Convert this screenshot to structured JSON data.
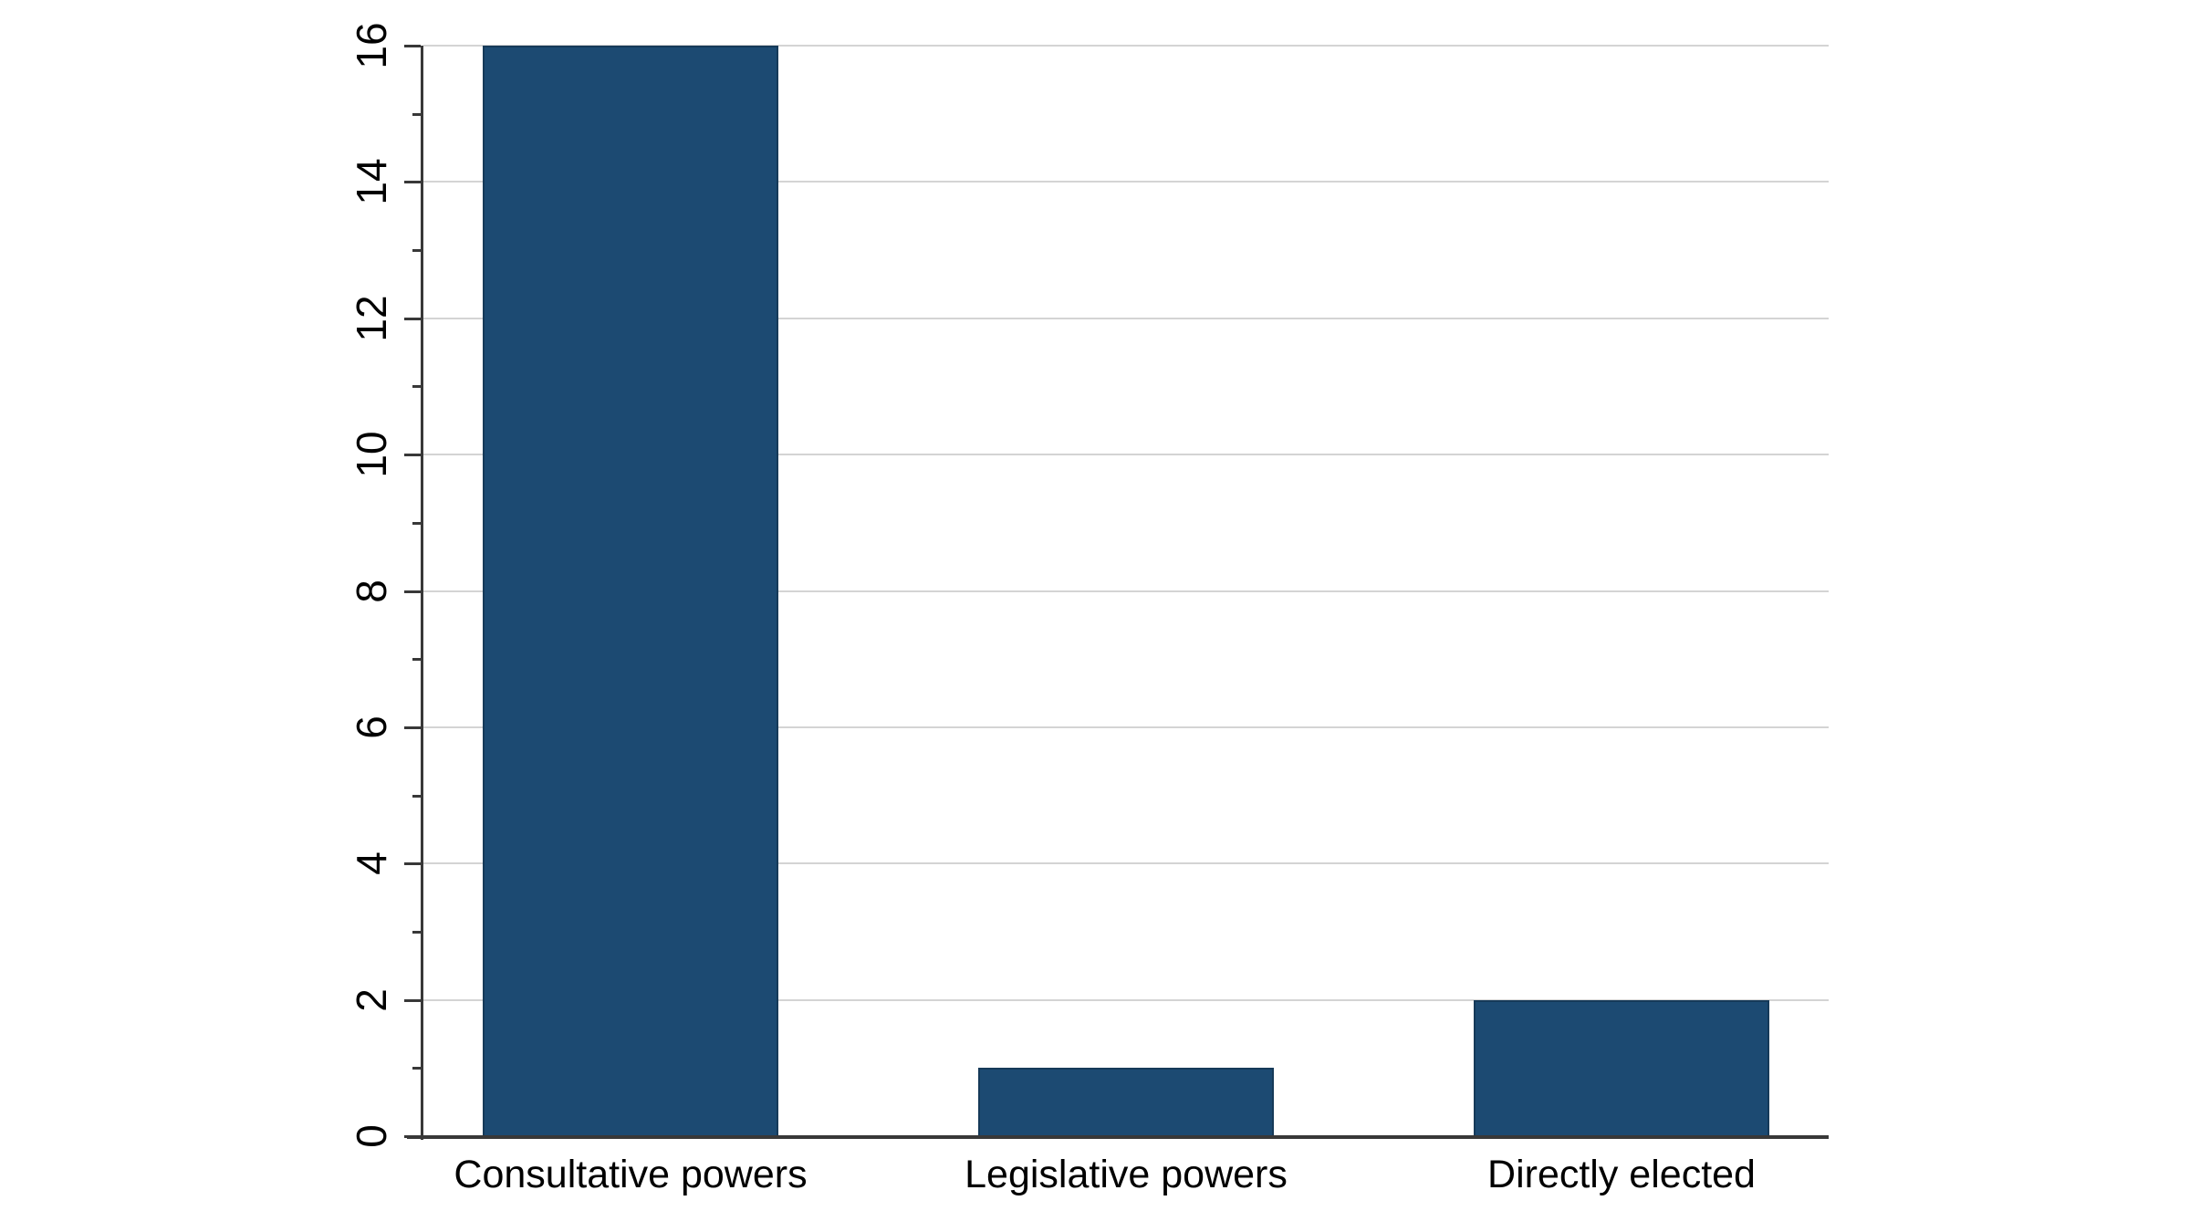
{
  "chart_data": {
    "type": "bar",
    "categories": [
      "Consultative powers",
      "Legislative powers",
      "Directly elected"
    ],
    "values": [
      16,
      1,
      2
    ],
    "title": "",
    "xlabel": "",
    "ylabel": "",
    "ylim": [
      0,
      16
    ],
    "yticks_major": [
      0,
      2,
      4,
      6,
      8,
      10,
      12,
      14,
      16
    ],
    "yticks_minor": [
      1,
      3,
      5,
      7,
      9,
      11,
      13,
      15
    ],
    "grid": true,
    "legend": false,
    "colors": {
      "bar_fill": "#1c4a72",
      "bar_border": "#163a59",
      "gridline": "#d4d4d4",
      "axis": "#383838",
      "text": "#000000",
      "background": "#ffffff"
    }
  }
}
